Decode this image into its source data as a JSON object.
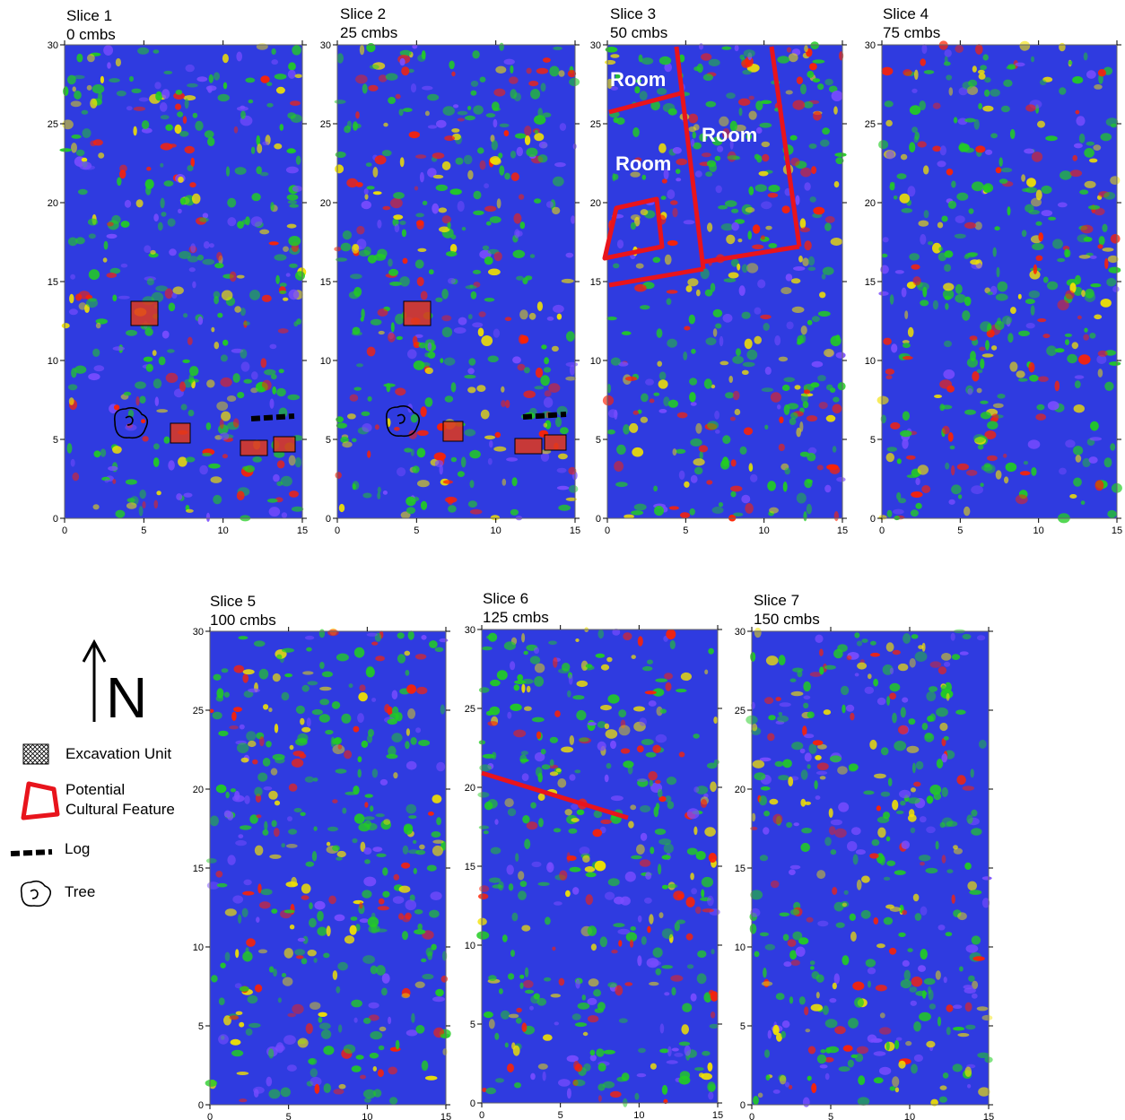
{
  "slices": [
    {
      "title": "Slice 1",
      "depth": "0 cmbs"
    },
    {
      "title": "Slice 2",
      "depth": "25 cmbs"
    },
    {
      "title": "Slice 3",
      "depth": "50 cmbs"
    },
    {
      "title": "Slice 4",
      "depth": "75 cmbs"
    },
    {
      "title": "Slice 5",
      "depth": "100 cmbs"
    },
    {
      "title": "Slice 6",
      "depth": "125 cmbs"
    },
    {
      "title": "Slice 7",
      "depth": "150 cmbs"
    }
  ],
  "axes": {
    "x_ticks": [
      "0",
      "5",
      "10",
      "15"
    ],
    "y_ticks": [
      "0",
      "5",
      "10",
      "15",
      "20",
      "25",
      "30"
    ],
    "x_range": [
      0,
      15
    ],
    "y_range": [
      0,
      30
    ]
  },
  "annotations": {
    "room_label": "Room"
  },
  "legend": {
    "north": "N",
    "excavation_unit": "Excavation Unit",
    "feature_line1": "Potential",
    "feature_line2": "Cultural Feature",
    "log": "Log",
    "tree": "Tree"
  },
  "colors": {
    "low": "#2a2ae8",
    "mid": "#22cc22",
    "high": "#ff2200",
    "feature": "#e8141c"
  }
}
